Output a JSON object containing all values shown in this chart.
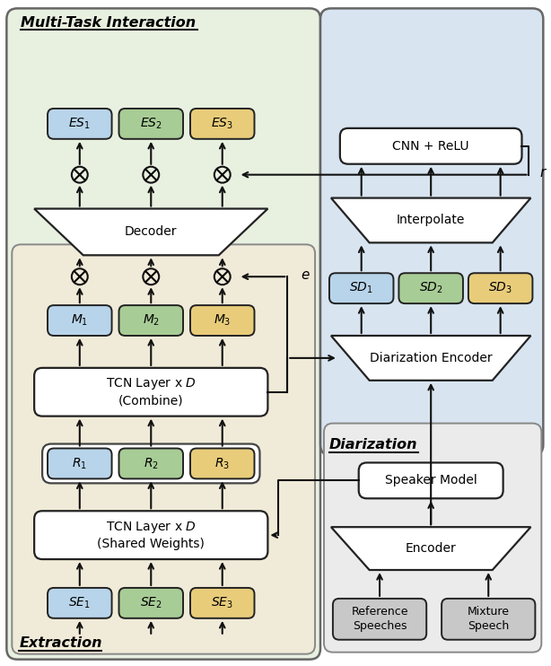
{
  "fig_width": 6.14,
  "fig_height": 7.42,
  "bg_color": "#ffffff",
  "colors": {
    "blue_box": "#b8d4ea",
    "green_box": "#a8cc96",
    "yellow_box": "#e8cc7a",
    "gray_box": "#c8c8c8",
    "white_box": "#ffffff",
    "green_bg": "#e8f0e0",
    "beige_bg": "#f0ead8",
    "blue_bg": "#d8e4f0",
    "gray_bg": "#ebebeb"
  },
  "se_boxes": [
    {
      "label": "$SE_1$",
      "color": "#b8d4ea"
    },
    {
      "label": "$SE_2$",
      "color": "#a8cc96"
    },
    {
      "label": "$SE_3$",
      "color": "#e8cc7a"
    }
  ],
  "r_boxes": [
    {
      "label": "$R_1$",
      "color": "#b8d4ea"
    },
    {
      "label": "$R_2$",
      "color": "#a8cc96"
    },
    {
      "label": "$R_3$",
      "color": "#e8cc7a"
    }
  ],
  "m_boxes": [
    {
      "label": "$M_1$",
      "color": "#b8d4ea"
    },
    {
      "label": "$M_2$",
      "color": "#a8cc96"
    },
    {
      "label": "$M_3$",
      "color": "#e8cc7a"
    }
  ],
  "es_boxes": [
    {
      "label": "$ES_1$",
      "color": "#b8d4ea"
    },
    {
      "label": "$ES_2$",
      "color": "#a8cc96"
    },
    {
      "label": "$ES_3$",
      "color": "#e8cc7a"
    }
  ],
  "sd_boxes": [
    {
      "label": "$SD_1$",
      "color": "#b8d4ea"
    },
    {
      "label": "$SD_2$",
      "color": "#a8cc96"
    },
    {
      "label": "$SD_3$",
      "color": "#e8cc7a"
    }
  ]
}
